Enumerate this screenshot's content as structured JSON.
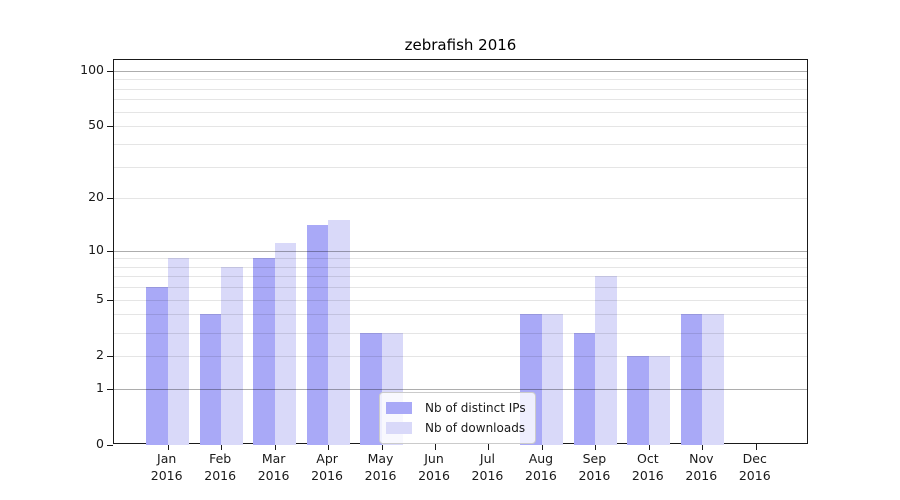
{
  "chart_data": {
    "type": "bar",
    "title": "zebrafish 2016",
    "categories": [
      "Jan 2016",
      "Feb 2016",
      "Mar 2016",
      "Apr 2016",
      "May 2016",
      "Jun 2016",
      "Jul 2016",
      "Aug 2016",
      "Sep 2016",
      "Oct 2016",
      "Nov 2016",
      "Dec 2016"
    ],
    "series": [
      {
        "name": "Nb of distinct IPs",
        "color": "#a9a9f7",
        "values": [
          6,
          4,
          9,
          14,
          3,
          0,
          0,
          4,
          3,
          2,
          4,
          0
        ]
      },
      {
        "name": "Nb of downloads",
        "color": "#d9d9f9",
        "values": [
          9,
          8,
          11,
          15,
          3,
          0,
          0,
          4,
          7,
          2,
          4,
          0
        ]
      }
    ],
    "xlabel": "",
    "ylabel": "",
    "yscale": "log1p",
    "yticks": [
      0,
      1,
      2,
      5,
      10,
      20,
      50,
      100
    ],
    "ylim": [
      0,
      115
    ],
    "grid": {
      "on": true,
      "major": [
        1,
        10,
        100
      ],
      "minor": [
        2,
        3,
        4,
        5,
        6,
        7,
        8,
        9,
        20,
        30,
        40,
        50,
        60,
        70,
        80,
        90
      ]
    },
    "legend_position": "lower center"
  }
}
